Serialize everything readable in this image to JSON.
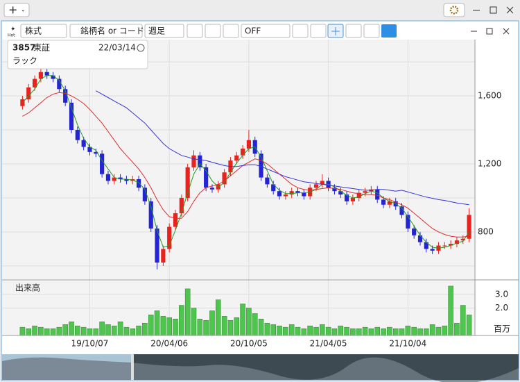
{
  "ui": {
    "hot": "Hot",
    "market_select": "株式",
    "search_placeholder": "銘柄名 or コード",
    "period_select": "週足",
    "mode_select": "OFF",
    "info": {
      "code": "3857",
      "market": "東証",
      "date": "22/03/14",
      "name": "ラック"
    }
  },
  "chart_data": [
    {
      "type": "candlestick",
      "categories": [
        null,
        null,
        null,
        null,
        null,
        null,
        null,
        null,
        null,
        null,
        null,
        "19/10/07",
        null,
        null,
        null,
        null,
        null,
        null,
        null,
        null,
        null,
        null,
        null,
        null,
        "20/04/06",
        null,
        null,
        null,
        null,
        null,
        null,
        null,
        null,
        null,
        null,
        null,
        null,
        "20/10/05",
        null,
        null,
        null,
        null,
        null,
        null,
        null,
        null,
        null,
        null,
        null,
        null,
        "21/04/05",
        null,
        null,
        null,
        null,
        null,
        null,
        null,
        null,
        null,
        null,
        null,
        null,
        "21/10/04",
        null,
        null,
        null,
        null,
        null,
        null,
        null,
        null,
        null,
        null
      ],
      "open": [
        1540,
        1580,
        1650,
        1700,
        1740,
        1720,
        1700,
        1640,
        1560,
        1400,
        1340,
        1300,
        1270,
        1260,
        1140,
        1100,
        1120,
        1110,
        1100,
        1110,
        1060,
        980,
        820,
        620,
        700,
        830,
        910,
        1000,
        1180,
        1250,
        1180,
        1060,
        1050,
        1080,
        1150,
        1220,
        1250,
        1290,
        1340,
        1260,
        1120,
        1080,
        1040,
        1010,
        1020,
        1040,
        1030,
        1010,
        1060,
        1080,
        1100,
        1060,
        1040,
        1020,
        980,
        1000,
        1030,
        1040,
        1050,
        990,
        960,
        980,
        950,
        900,
        820,
        780,
        740,
        700,
        690,
        720,
        720,
        730,
        750,
        760
      ],
      "high": [
        1600,
        1670,
        1720,
        1760,
        1760,
        1740,
        1720,
        1660,
        1580,
        1420,
        1360,
        1320,
        1290,
        1280,
        1160,
        1140,
        1140,
        1130,
        1130,
        1130,
        1080,
        1000,
        840,
        720,
        850,
        930,
        1020,
        1200,
        1280,
        1270,
        1200,
        1080,
        1100,
        1170,
        1240,
        1270,
        1310,
        1400,
        1360,
        1280,
        1140,
        1100,
        1060,
        1040,
        1060,
        1060,
        1050,
        1080,
        1100,
        1140,
        1120,
        1080,
        1060,
        1040,
        1020,
        1050,
        1060,
        1070,
        1070,
        1010,
        1000,
        1000,
        970,
        920,
        840,
        800,
        760,
        720,
        740,
        740,
        750,
        770,
        780,
        940
      ],
      "low": [
        1520,
        1560,
        1630,
        1680,
        1700,
        1680,
        1620,
        1540,
        1380,
        1320,
        1280,
        1250,
        1240,
        1120,
        1080,
        1080,
        1090,
        1080,
        1080,
        1040,
        960,
        800,
        580,
        600,
        680,
        810,
        890,
        980,
        1160,
        1160,
        1040,
        1030,
        1030,
        1060,
        1130,
        1200,
        1230,
        1270,
        1240,
        1100,
        1060,
        1020,
        990,
        990,
        1000,
        1010,
        990,
        990,
        1040,
        1060,
        1040,
        1020,
        1000,
        960,
        960,
        980,
        1010,
        1020,
        970,
        940,
        940,
        930,
        880,
        800,
        760,
        720,
        680,
        670,
        670,
        700,
        700,
        710,
        730,
        740
      ],
      "close": [
        1580,
        1650,
        1700,
        1740,
        1720,
        1700,
        1640,
        1560,
        1400,
        1340,
        1300,
        1270,
        1260,
        1140,
        1100,
        1120,
        1110,
        1100,
        1110,
        1060,
        980,
        820,
        620,
        700,
        830,
        910,
        1000,
        1180,
        1250,
        1180,
        1060,
        1050,
        1080,
        1150,
        1220,
        1250,
        1290,
        1340,
        1260,
        1120,
        1080,
        1040,
        1010,
        1020,
        1040,
        1030,
        1010,
        1060,
        1080,
        1100,
        1060,
        1040,
        1020,
        980,
        1000,
        1030,
        1040,
        1050,
        990,
        960,
        980,
        950,
        900,
        820,
        780,
        740,
        700,
        690,
        720,
        720,
        730,
        750,
        760,
        900
      ],
      "up_color": "#e8231e",
      "down_color": "#2424d4",
      "series": [
        {
          "color": "#1f9a1f",
          "values": [
            1560,
            1600,
            1640,
            1700,
            1720,
            1720,
            1690,
            1630,
            1530,
            1430,
            1350,
            1300,
            1280,
            1220,
            1170,
            1120,
            1110,
            1110,
            1105,
            1090,
            1050,
            950,
            810,
            710,
            720,
            810,
            910,
            1030,
            1140,
            1200,
            1160,
            1100,
            1065,
            1090,
            1150,
            1205,
            1250,
            1290,
            1300,
            1240,
            1160,
            1080,
            1045,
            1025,
            1025,
            1030,
            1030,
            1035,
            1050,
            1080,
            1080,
            1065,
            1040,
            1015,
            1000,
            1005,
            1025,
            1040,
            1030,
            1000,
            980,
            965,
            940,
            890,
            835,
            780,
            740,
            710,
            705,
            710,
            720,
            735,
            745,
            800
          ]
        },
        {
          "color": "#e02a2a",
          "values": [
            1480,
            1500,
            1530,
            1560,
            1590,
            1610,
            1620,
            1615,
            1600,
            1580,
            1555,
            1520,
            1480,
            1440,
            1390,
            1340,
            1290,
            1250,
            1210,
            1170,
            1120,
            1060,
            990,
            930,
            890,
            880,
            880,
            920,
            980,
            1030,
            1060,
            1070,
            1080,
            1100,
            1130,
            1160,
            1190,
            1210,
            1230,
            1220,
            1200,
            1170,
            1140,
            1110,
            1080,
            1060,
            1050,
            1045,
            1050,
            1055,
            1060,
            1055,
            1050,
            1040,
            1030,
            1025,
            1020,
            1020,
            1015,
            1000,
            990,
            975,
            960,
            940,
            910,
            880,
            850,
            820,
            800,
            785,
            775,
            770,
            770,
            775
          ]
        },
        {
          "color": "#3434d8",
          "values": [
            null,
            null,
            null,
            null,
            null,
            null,
            null,
            null,
            null,
            null,
            null,
            null,
            1630,
            1610,
            1590,
            1570,
            1550,
            1530,
            1500,
            1470,
            1440,
            1400,
            1360,
            1320,
            1290,
            1270,
            1250,
            1240,
            1230,
            1225,
            1220,
            1210,
            1200,
            1190,
            1185,
            1185,
            1190,
            1195,
            1195,
            1185,
            1170,
            1155,
            1140,
            1125,
            1115,
            1105,
            1095,
            1090,
            1085,
            1080,
            1075,
            1070,
            1065,
            1060,
            1055,
            1050,
            1045,
            1045,
            1050,
            1050,
            1045,
            1040,
            1045,
            1035,
            1025,
            1015,
            1005,
            998,
            990,
            985,
            978,
            970,
            965,
            960
          ]
        }
      ],
      "ylim": [
        522,
        1927
      ],
      "yticks": [
        800,
        {
          "value": 1200,
          "label": "1,200"
        },
        {
          "value": 1600,
          "label": "1,600"
        }
      ],
      "minor_yticks": [
        600,
        1000,
        1400,
        1800
      ],
      "grid": true
    },
    {
      "type": "bar",
      "title": "出来高",
      "unit_label": "百万",
      "color": "#4ec64e",
      "values": [
        0.6,
        0.5,
        0.7,
        0.6,
        0.5,
        0.5,
        0.6,
        0.8,
        1.0,
        0.7,
        0.6,
        0.5,
        0.5,
        1.0,
        0.8,
        0.7,
        1.0,
        0.6,
        0.5,
        0.7,
        0.9,
        1.5,
        1.8,
        1.4,
        1.3,
        1.2,
        2.2,
        3.4,
        2.0,
        1.2,
        1.1,
        1.8,
        2.6,
        1.4,
        1.1,
        1.3,
        2.3,
        2.0,
        1.6,
        1.2,
        0.9,
        0.8,
        0.7,
        0.6,
        0.8,
        0.6,
        0.5,
        0.7,
        0.6,
        0.8,
        0.6,
        0.5,
        0.7,
        0.6,
        0.5,
        0.5,
        0.6,
        0.5,
        0.6,
        0.5,
        0.6,
        0.5,
        0.5,
        0.7,
        0.6,
        0.5,
        0.5,
        0.8,
        0.6,
        0.7,
        3.6,
        0.9,
        2.2,
        1.5
      ],
      "ylim": [
        0,
        4
      ],
      "yticks": [
        {
          "value": 2,
          "label": "2.0"
        },
        {
          "value": 3,
          "label": "3.0"
        }
      ]
    }
  ]
}
